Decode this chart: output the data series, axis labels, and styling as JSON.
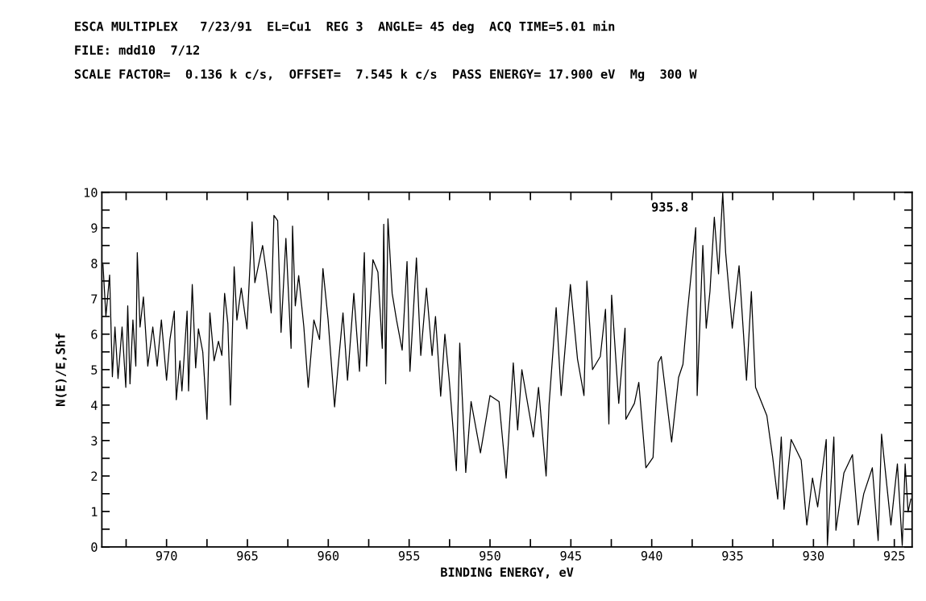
{
  "chart_data": {
    "type": "line",
    "title": "ESCA MULTIPLEX   7/23/91  EL=Cu1  REG 3  ANGLE= 45 deg  ACQ TIME=5.01 min",
    "subtitle": "FILE: mdd10  7/12",
    "annotations": [
      "SCALE FACTOR=  0.136 k c/s,  OFFSET=  7.545 k c/s  PASS ENERGY= 17.900 eV  Mg  300 W",
      {
        "text": "935.8",
        "x": 935.8,
        "y": 10
      }
    ],
    "xlabel": "BINDING ENERGY, eV",
    "ylabel": "N(E)/E,Shf",
    "series": [
      {
        "color": "#000000",
        "x": [
          973.93,
          973.75,
          973.52,
          973.35,
          973.19,
          973.0,
          972.75,
          972.52,
          972.4,
          972.26,
          972.08,
          971.9,
          971.81,
          971.64,
          971.43,
          971.16,
          970.85,
          970.58,
          970.32,
          970.0,
          969.79,
          969.52,
          969.4,
          969.17,
          969.05,
          968.73,
          968.64,
          968.41,
          968.2,
          968.03,
          967.76,
          967.5,
          967.32,
          967.06,
          966.79,
          966.58,
          966.41,
          966.21,
          966.05,
          965.82,
          965.65,
          965.38,
          965.03,
          964.71,
          964.54,
          964.06,
          963.83,
          963.53,
          963.36,
          963.13,
          962.92,
          962.62,
          962.3,
          962.21,
          962.04,
          961.83,
          961.51,
          961.24,
          960.89,
          960.54,
          960.33,
          960.01,
          959.61,
          959.39,
          959.09,
          958.81,
          958.42,
          958.07,
          957.77,
          957.63,
          957.24,
          956.93,
          956.66,
          956.57,
          956.45,
          956.31,
          956.05,
          955.78,
          955.43,
          955.13,
          954.95,
          954.55,
          954.28,
          953.93,
          953.58,
          953.37,
          953.05,
          952.79,
          952.52,
          952.08,
          951.87,
          951.5,
          951.17,
          950.59,
          950.0,
          949.44,
          949.0,
          948.56,
          948.29,
          948.03,
          947.32,
          947.0,
          946.53,
          946.35,
          945.91,
          945.6,
          945.03,
          944.59,
          944.19,
          944.01,
          943.66,
          943.18,
          942.86,
          942.65,
          942.48,
          942.04,
          941.65,
          941.6,
          941.07,
          940.8,
          940.36,
          939.92,
          939.6,
          939.41,
          938.77,
          938.34,
          938.07,
          937.81,
          937.28,
          937.19,
          936.84,
          936.63,
          936.4,
          936.13,
          935.87,
          935.61,
          935.43,
          935.02,
          934.6,
          934.14,
          933.84,
          933.58,
          932.88,
          932.7,
          932.52,
          932.21,
          931.99,
          931.82,
          931.38,
          930.76,
          930.41,
          930.06,
          929.74,
          929.21,
          929.14,
          928.74,
          928.61,
          928.12,
          927.59,
          927.24,
          926.89,
          926.36,
          926.0,
          925.79,
          925.21,
          924.81,
          924.51,
          924.33,
          924.15,
          923.98
        ],
        "values": [
          7.96,
          6.5,
          7.67,
          4.8,
          6.2,
          4.75,
          6.2,
          4.5,
          6.8,
          4.6,
          6.4,
          5.1,
          8.3,
          6.2,
          7.05,
          5.1,
          6.2,
          5.1,
          6.4,
          4.7,
          5.85,
          6.65,
          4.15,
          5.25,
          4.4,
          6.65,
          4.4,
          7.4,
          5.05,
          6.15,
          5.5,
          3.6,
          6.6,
          5.25,
          5.8,
          5.4,
          7.15,
          6.3,
          4.0,
          7.9,
          6.4,
          7.3,
          6.15,
          9.17,
          7.45,
          8.5,
          7.75,
          6.6,
          9.35,
          9.2,
          6.05,
          8.7,
          5.6,
          9.05,
          6.8,
          7.65,
          6.2,
          4.5,
          6.4,
          5.85,
          7.85,
          6.4,
          3.95,
          5.1,
          6.6,
          4.7,
          7.15,
          4.95,
          8.3,
          5.1,
          8.1,
          7.75,
          5.6,
          9.1,
          4.6,
          9.25,
          7.15,
          6.4,
          5.55,
          8.05,
          4.95,
          8.15,
          5.4,
          7.3,
          5.4,
          6.5,
          4.25,
          6.0,
          4.7,
          2.15,
          5.75,
          2.1,
          4.1,
          2.65,
          4.27,
          4.1,
          1.94,
          5.19,
          3.3,
          5.0,
          3.1,
          4.5,
          2.0,
          4.0,
          6.75,
          4.27,
          7.4,
          5.3,
          4.27,
          7.5,
          5.0,
          5.37,
          6.7,
          3.47,
          7.1,
          4.05,
          6.17,
          3.6,
          4.05,
          4.64,
          2.23,
          2.52,
          5.2,
          5.37,
          2.96,
          4.78,
          5.15,
          6.54,
          9.0,
          4.27,
          8.5,
          6.17,
          7.2,
          9.3,
          7.7,
          10.0,
          8.3,
          6.17,
          7.93,
          4.7,
          7.2,
          4.5,
          3.7,
          3.1,
          2.52,
          1.35,
          3.1,
          1.06,
          3.03,
          2.45,
          0.62,
          1.94,
          1.13,
          3.03,
          0.04,
          3.1,
          0.47,
          2.08,
          2.6,
          0.62,
          1.5,
          2.23,
          0.18,
          3.18,
          0.62,
          2.34,
          0.04,
          2.34,
          0.99,
          1.35
        ]
      }
    ],
    "xlim": [
      974.0,
      923.9
    ],
    "xticks": [
      {
        "value": 972.5,
        "label": null
      },
      970,
      {
        "value": 967.5,
        "label": null
      },
      965,
      {
        "value": 962.5,
        "label": null
      },
      960,
      {
        "value": 957.5,
        "label": null
      },
      955,
      {
        "value": 952.5,
        "label": null
      },
      950,
      {
        "value": 947.5,
        "label": null
      },
      945,
      {
        "value": 942.5,
        "label": null
      },
      940,
      {
        "value": 937.5,
        "label": null
      },
      935,
      {
        "value": 932.5,
        "label": null
      },
      930,
      {
        "value": 927.5,
        "label": null
      },
      925
    ],
    "ylim": [
      0,
      10
    ],
    "yticks": [
      0,
      {
        "value": 0.5,
        "label": null
      },
      1,
      {
        "value": 1.5,
        "label": null
      },
      2,
      {
        "value": 2.5,
        "label": null
      },
      3,
      {
        "value": 3.5,
        "label": null
      },
      4,
      {
        "value": 4.5,
        "label": null
      },
      5,
      {
        "value": 5.5,
        "label": null
      },
      6,
      {
        "value": 6.5,
        "label": null
      },
      7,
      {
        "value": 7.5,
        "label": null
      },
      8,
      {
        "value": 8.5,
        "label": null
      },
      9,
      {
        "value": 9.5,
        "label": null
      },
      10
    ],
    "grid": false,
    "marker": "none",
    "line_style": "solid"
  }
}
